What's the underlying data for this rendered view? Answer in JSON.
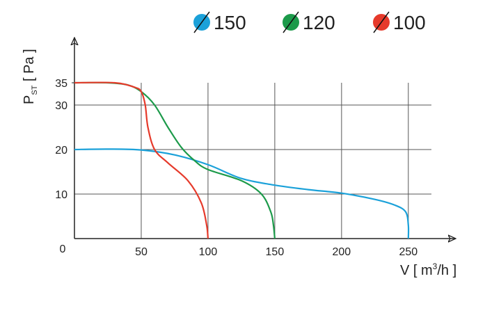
{
  "chart_data": {
    "type": "line",
    "x_label": {
      "main": "V [ m",
      "sup": "3",
      "rest": "/h ]"
    },
    "y_label": {
      "main": "P",
      "sub": "ST",
      "rest": " [ Pa ]"
    },
    "xlim": [
      0,
      285
    ],
    "ylim": [
      0,
      45
    ],
    "xticks": [
      0,
      50,
      100,
      150,
      200,
      250
    ],
    "yticks": [
      10,
      20,
      30,
      35
    ],
    "grid": true,
    "legend": "top",
    "series": [
      {
        "name": "150",
        "color": "#1ba1d9",
        "x": [
          0,
          25,
          50,
          75,
          100,
          125,
          150,
          175,
          200,
          225,
          240,
          248,
          250,
          250
        ],
        "values": [
          20,
          20.1,
          19.9,
          18.8,
          16.6,
          13.5,
          12,
          11,
          10.2,
          8.8,
          7.5,
          6,
          3,
          0
        ]
      },
      {
        "name": "120",
        "color": "#1c9a4a",
        "x": [
          0,
          25,
          40,
          50,
          60,
          70,
          80,
          90,
          100,
          125,
          140,
          147,
          149,
          150
        ],
        "values": [
          35,
          35,
          34.5,
          33,
          30,
          25,
          20.5,
          17.5,
          15.5,
          13,
          10,
          6,
          3,
          0
        ]
      },
      {
        "name": "100",
        "color": "#e63a2b",
        "x": [
          0,
          30,
          45,
          50,
          53,
          55,
          60,
          70,
          85,
          95,
          99,
          100
        ],
        "values": [
          35,
          35,
          34,
          33,
          30,
          25,
          20,
          17,
          13,
          8,
          3,
          0
        ]
      }
    ]
  }
}
